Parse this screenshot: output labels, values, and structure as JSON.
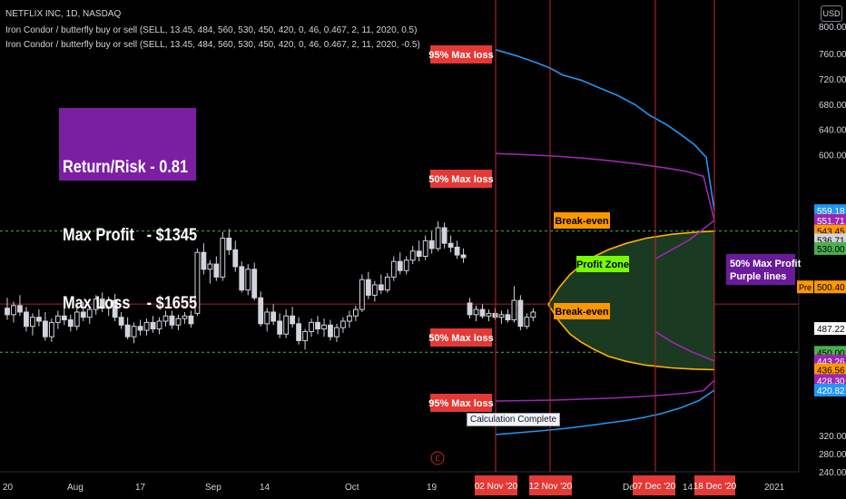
{
  "header": {
    "symbol_line": "NETFLIX INC, 1D, NASDAQ",
    "indicator_1": "Iron Condor / butterfly buy or sell (SELL, 13.45, 484, 560, 530, 450, 420, 0, 46, 0.467, 2, 11, 2020, 0.5)",
    "indicator_2": "Iron Condor / butterfly buy or sell (SELL, 13.45, 484, 560, 530, 450, 420, 0, 46, 0.467, 2, 11, 2020, -0.5)"
  },
  "currency": "USD",
  "stats": {
    "return_risk": "Return/Risk - 0.81",
    "max_profit": "Max Profit   - $1345",
    "max_loss": "Max Loss    - $1655"
  },
  "status": "Calculation Complete",
  "chart_data": {
    "type": "candlestick",
    "y_axis": {
      "range": [
        236,
        806
      ],
      "ticks": [
        "760.00",
        "720.00",
        "680.00",
        "640.00",
        "600.00",
        "320.00",
        "280.00",
        "240.00"
      ],
      "top_partial_tick": "800.00"
    },
    "x_axis": {
      "labels": [
        "20",
        "Aug",
        "17",
        "Sep",
        "14",
        "Oct",
        "19",
        "Dec",
        "14",
        "2021"
      ],
      "highlighted_labels": [
        "02 Nov '20",
        "12 Nov '20",
        "07 Dec '20",
        "18 Dec '20"
      ]
    },
    "price_labels": [
      {
        "text": "559.18",
        "value": 559.18,
        "color": "#2196f3"
      },
      {
        "text": "551.71",
        "value": 551.71,
        "color": "#9c27b0"
      },
      {
        "text": "543.45",
        "value": 543.45,
        "color": "#ff9800",
        "dark": true
      },
      {
        "text": "536.71",
        "value": 536.71,
        "color": "#d1d4dc",
        "dark": true
      },
      {
        "text": "530.00",
        "value": 530.0,
        "color": "#4caf50",
        "dark": true
      },
      {
        "text": "500.40",
        "value": 500.4,
        "color": "#ff9800",
        "dark": true,
        "prefix": "Pre"
      },
      {
        "text": "487.22",
        "value": 487.22,
        "color": "#ffffff",
        "dark": true
      },
      {
        "text": "450.00",
        "value": 450.0,
        "color": "#4caf50",
        "dark": true
      },
      {
        "text": "443.26",
        "value": 443.26,
        "color": "#9c27b0"
      },
      {
        "text": "436.56",
        "value": 436.56,
        "color": "#ff9800",
        "dark": true
      },
      {
        "text": "428.30",
        "value": 428.3,
        "color": "#9c27b0"
      },
      {
        "text": "420.82",
        "value": 420.82,
        "color": "#2196f3"
      }
    ],
    "annotations": {
      "max_loss_95_upper": "95% Max loss",
      "max_loss_50_upper": "50% Max loss",
      "break_even_upper": "Break-even",
      "profit_zone": "Profit Zone",
      "break_even_lower": "Break-even",
      "max_loss_50_lower": "50% Max loss",
      "max_loss_95_lower": "95% Max loss",
      "max_profit_note_1": "50% Max Profit",
      "max_profit_note_2": "Purple lines",
      "event_marker": "E"
    },
    "levels": {
      "green_upper": 543.45,
      "red_center": 487.22,
      "green_lower": 450.0
    },
    "candles": [
      {
        "o": 484,
        "h": 492,
        "l": 475,
        "c": 479
      },
      {
        "o": 479,
        "h": 489,
        "l": 473,
        "c": 486
      },
      {
        "o": 486,
        "h": 494,
        "l": 478,
        "c": 481
      },
      {
        "o": 481,
        "h": 485,
        "l": 466,
        "c": 470
      },
      {
        "o": 470,
        "h": 480,
        "l": 463,
        "c": 477
      },
      {
        "o": 477,
        "h": 483,
        "l": 470,
        "c": 474
      },
      {
        "o": 474,
        "h": 481,
        "l": 459,
        "c": 462
      },
      {
        "o": 462,
        "h": 476,
        "l": 458,
        "c": 473
      },
      {
        "o": 473,
        "h": 482,
        "l": 468,
        "c": 478
      },
      {
        "o": 478,
        "h": 486,
        "l": 471,
        "c": 475
      },
      {
        "o": 475,
        "h": 479,
        "l": 466,
        "c": 470
      },
      {
        "o": 470,
        "h": 484,
        "l": 467,
        "c": 481
      },
      {
        "o": 481,
        "h": 489,
        "l": 474,
        "c": 477
      },
      {
        "o": 477,
        "h": 485,
        "l": 472,
        "c": 483
      },
      {
        "o": 483,
        "h": 494,
        "l": 479,
        "c": 491
      },
      {
        "o": 491,
        "h": 496,
        "l": 481,
        "c": 484
      },
      {
        "o": 484,
        "h": 493,
        "l": 478,
        "c": 490
      },
      {
        "o": 490,
        "h": 495,
        "l": 474,
        "c": 477
      },
      {
        "o": 477,
        "h": 481,
        "l": 468,
        "c": 471
      },
      {
        "o": 471,
        "h": 477,
        "l": 460,
        "c": 462
      },
      {
        "o": 462,
        "h": 473,
        "l": 457,
        "c": 470
      },
      {
        "o": 470,
        "h": 475,
        "l": 463,
        "c": 467
      },
      {
        "o": 467,
        "h": 476,
        "l": 463,
        "c": 473
      },
      {
        "o": 473,
        "h": 478,
        "l": 465,
        "c": 468
      },
      {
        "o": 468,
        "h": 477,
        "l": 464,
        "c": 474
      },
      {
        "o": 474,
        "h": 482,
        "l": 470,
        "c": 478
      },
      {
        "o": 478,
        "h": 482,
        "l": 468,
        "c": 471
      },
      {
        "o": 471,
        "h": 479,
        "l": 467,
        "c": 476
      },
      {
        "o": 476,
        "h": 481,
        "l": 472,
        "c": 478
      },
      {
        "o": 478,
        "h": 482,
        "l": 469,
        "c": 472
      },
      {
        "o": 480,
        "h": 530,
        "l": 478,
        "c": 527
      },
      {
        "o": 527,
        "h": 534,
        "l": 510,
        "c": 514
      },
      {
        "o": 514,
        "h": 521,
        "l": 503,
        "c": 518
      },
      {
        "o": 518,
        "h": 524,
        "l": 505,
        "c": 508
      },
      {
        "o": 508,
        "h": 543,
        "l": 505,
        "c": 538
      },
      {
        "o": 538,
        "h": 545,
        "l": 525,
        "c": 529
      },
      {
        "o": 529,
        "h": 536,
        "l": 512,
        "c": 516
      },
      {
        "o": 516,
        "h": 520,
        "l": 496,
        "c": 498
      },
      {
        "o": 498,
        "h": 518,
        "l": 494,
        "c": 514
      },
      {
        "o": 514,
        "h": 519,
        "l": 490,
        "c": 492
      },
      {
        "o": 492,
        "h": 497,
        "l": 470,
        "c": 472
      },
      {
        "o": 472,
        "h": 484,
        "l": 466,
        "c": 481
      },
      {
        "o": 481,
        "h": 487,
        "l": 471,
        "c": 474
      },
      {
        "o": 474,
        "h": 480,
        "l": 461,
        "c": 464
      },
      {
        "o": 464,
        "h": 483,
        "l": 461,
        "c": 478
      },
      {
        "o": 478,
        "h": 485,
        "l": 469,
        "c": 472
      },
      {
        "o": 472,
        "h": 477,
        "l": 456,
        "c": 459
      },
      {
        "o": 459,
        "h": 468,
        "l": 452,
        "c": 466
      },
      {
        "o": 466,
        "h": 476,
        "l": 462,
        "c": 473
      },
      {
        "o": 473,
        "h": 478,
        "l": 464,
        "c": 468
      },
      {
        "o": 468,
        "h": 476,
        "l": 462,
        "c": 471
      },
      {
        "o": 471,
        "h": 475,
        "l": 459,
        "c": 462
      },
      {
        "o": 462,
        "h": 472,
        "l": 458,
        "c": 469
      },
      {
        "o": 469,
        "h": 477,
        "l": 465,
        "c": 474
      },
      {
        "o": 474,
        "h": 482,
        "l": 469,
        "c": 478
      },
      {
        "o": 478,
        "h": 486,
        "l": 474,
        "c": 483
      },
      {
        "o": 483,
        "h": 510,
        "l": 481,
        "c": 506
      },
      {
        "o": 506,
        "h": 512,
        "l": 491,
        "c": 494
      },
      {
        "o": 494,
        "h": 505,
        "l": 489,
        "c": 502
      },
      {
        "o": 502,
        "h": 510,
        "l": 495,
        "c": 498
      },
      {
        "o": 498,
        "h": 511,
        "l": 496,
        "c": 508
      },
      {
        "o": 508,
        "h": 524,
        "l": 505,
        "c": 520
      },
      {
        "o": 520,
        "h": 527,
        "l": 510,
        "c": 513
      },
      {
        "o": 513,
        "h": 524,
        "l": 510,
        "c": 521
      },
      {
        "o": 521,
        "h": 532,
        "l": 518,
        "c": 528
      },
      {
        "o": 528,
        "h": 536,
        "l": 520,
        "c": 524
      },
      {
        "o": 524,
        "h": 540,
        "l": 521,
        "c": 536
      },
      {
        "o": 536,
        "h": 543,
        "l": 526,
        "c": 530
      },
      {
        "o": 530,
        "h": 551,
        "l": 528,
        "c": 546
      },
      {
        "o": 546,
        "h": 550,
        "l": 530,
        "c": 534
      },
      {
        "o": 534,
        "h": 540,
        "l": 527,
        "c": 531
      },
      {
        "o": 531,
        "h": 536,
        "l": 522,
        "c": 525
      },
      {
        "o": 525,
        "h": 530,
        "l": 519,
        "c": 523
      },
      {
        "o": 488,
        "h": 492,
        "l": 476,
        "c": 479
      },
      {
        "o": 479,
        "h": 486,
        "l": 474,
        "c": 483
      },
      {
        "o": 483,
        "h": 487,
        "l": 476,
        "c": 478
      },
      {
        "o": 478,
        "h": 483,
        "l": 474,
        "c": 480
      },
      {
        "o": 480,
        "h": 484,
        "l": 475,
        "c": 477
      },
      {
        "o": 477,
        "h": 482,
        "l": 472,
        "c": 479
      },
      {
        "o": 479,
        "h": 483,
        "l": 473,
        "c": 475
      },
      {
        "o": 475,
        "h": 501,
        "l": 473,
        "c": 490
      },
      {
        "o": 490,
        "h": 494,
        "l": 467,
        "c": 470
      },
      {
        "o": 470,
        "h": 480,
        "l": 468,
        "c": 477
      },
      {
        "o": 477,
        "h": 484,
        "l": 474,
        "c": 481
      }
    ]
  }
}
